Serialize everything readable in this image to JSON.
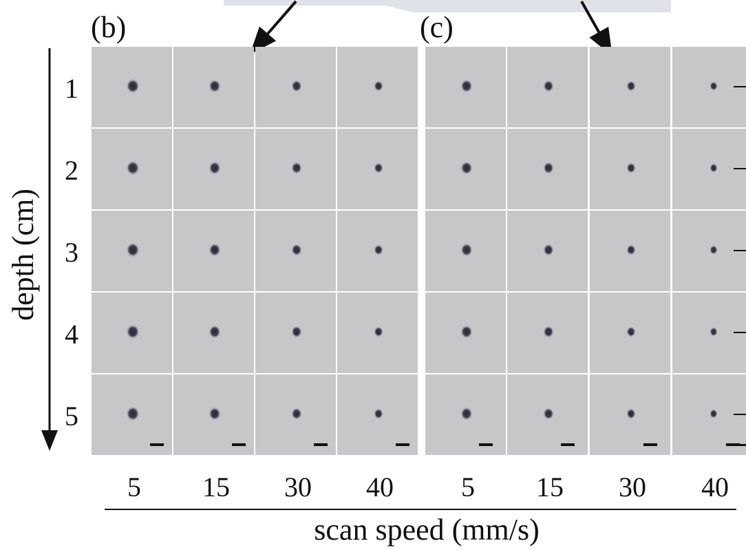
{
  "panels": [
    {
      "label": "(b)"
    },
    {
      "label": "(c)"
    }
  ],
  "row_labels": [
    "1",
    "2",
    "3",
    "4",
    "5"
  ],
  "column_labels": [
    "5",
    "15",
    "30",
    "40",
    "5",
    "15",
    "30",
    "40"
  ],
  "y_axis_label": "depth (cm)",
  "x_axis_label": "scan speed (mm/s)"
}
